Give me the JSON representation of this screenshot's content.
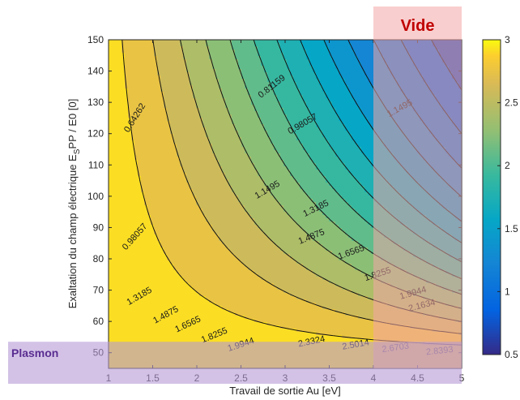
{
  "chart_data": {
    "type": "contour",
    "xlabel": "Travail de sortie Au [eV]",
    "ylabel_main": "Exaltation du champ électrique E",
    "ylabel_sub": "S",
    "ylabel_rest": "PP / E0 [0]",
    "xlim": [
      1,
      5
    ],
    "ylim": [
      45,
      150
    ],
    "x_ticks": [
      "1",
      "1.5",
      "2",
      "2.5",
      "3",
      "3.5",
      "4",
      "4.5",
      "5"
    ],
    "y_ticks": [
      "50",
      "60",
      "70",
      "80",
      "90",
      "100",
      "110",
      "120",
      "130",
      "140",
      "150"
    ],
    "colorbar": {
      "range": [
        0.5,
        3
      ],
      "ticks": [
        "0.5",
        "1",
        "1.5",
        "2",
        "2.5",
        "3"
      ],
      "colormap": "parula"
    },
    "contour_levels": [
      0.64262,
      0.81159,
      0.98057,
      1.1495,
      1.3185,
      1.4875,
      1.6565,
      1.8255,
      1.9944,
      2.1634,
      2.3324,
      2.5014,
      2.6703,
      2.8393
    ],
    "contour_labels": [
      {
        "text": "0.64262",
        "x": 1.3,
        "y": 125,
        "angle": -58
      },
      {
        "text": "0.81159",
        "x": 2.85,
        "y": 135,
        "angle": -38
      },
      {
        "text": "0.98057",
        "x": 3.2,
        "y": 123,
        "angle": -30
      },
      {
        "text": "1.1495",
        "x": 4.3,
        "y": 128,
        "angle": -28
      },
      {
        "text": "0.98057",
        "x": 1.3,
        "y": 87,
        "angle": -48
      },
      {
        "text": "1.1495",
        "x": 2.8,
        "y": 102,
        "angle": -30
      },
      {
        "text": "1.3185",
        "x": 3.35,
        "y": 96,
        "angle": -26
      },
      {
        "text": "1.4875",
        "x": 3.3,
        "y": 87,
        "angle": -22
      },
      {
        "text": "1.6565",
        "x": 3.75,
        "y": 82,
        "angle": -20
      },
      {
        "text": "1.8255",
        "x": 4.05,
        "y": 75,
        "angle": -18
      },
      {
        "text": "1.9944",
        "x": 4.45,
        "y": 69,
        "angle": -16
      },
      {
        "text": "2.1634",
        "x": 4.55,
        "y": 65,
        "angle": -14
      },
      {
        "text": "1.3185",
        "x": 1.35,
        "y": 68,
        "angle": -30
      },
      {
        "text": "1.4875",
        "x": 1.65,
        "y": 62,
        "angle": -28
      },
      {
        "text": "1.6565",
        "x": 1.9,
        "y": 59,
        "angle": -25
      },
      {
        "text": "1.8255",
        "x": 2.2,
        "y": 55.5,
        "angle": -22
      },
      {
        "text": "1.9944",
        "x": 2.5,
        "y": 52.5,
        "angle": -18
      },
      {
        "text": "2.3324",
        "x": 3.3,
        "y": 53.5,
        "angle": -12
      },
      {
        "text": "2.5014",
        "x": 3.8,
        "y": 52.5,
        "angle": -10
      },
      {
        "text": "2.6703",
        "x": 4.25,
        "y": 51.5,
        "angle": -8
      },
      {
        "text": "2.8393",
        "x": 4.75,
        "y": 50.5,
        "angle": -6
      }
    ]
  },
  "annotations": {
    "vide": {
      "label": "Vide",
      "x_range": [
        4,
        5
      ],
      "box_color": "#f4a6a6",
      "text_color": "#c00000"
    },
    "plasmon": {
      "label": "Plasmon",
      "y_range": [
        45,
        53.5
      ],
      "box_color": "#b59ad6",
      "text_color": "#5a2d91"
    }
  }
}
